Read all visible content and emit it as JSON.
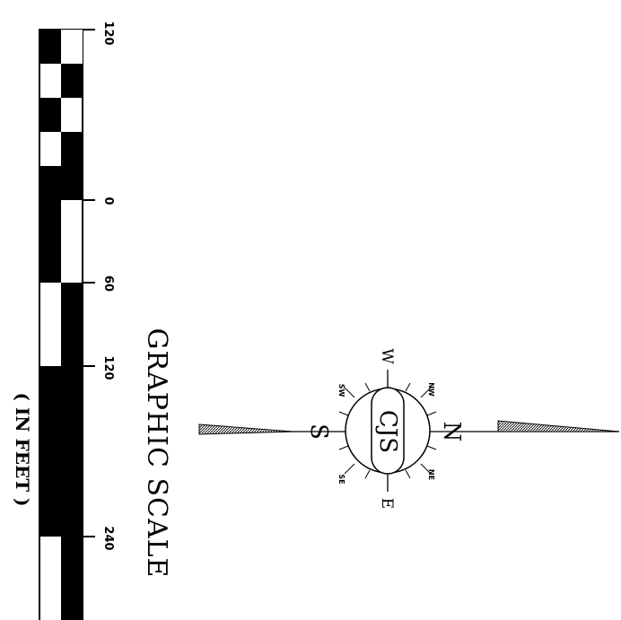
{
  "scale": {
    "title": "GRAPHIC SCALE",
    "unit": "( IN FEET )",
    "tick_labels": [
      "120",
      "0",
      "60",
      "120",
      "240"
    ]
  },
  "compass": {
    "monogram": "CJS",
    "north": "N",
    "south": "S",
    "east": "E",
    "west": "W",
    "northwest": "NW",
    "northeast": "NE",
    "southwest": "SW",
    "southeast": "SE"
  }
}
